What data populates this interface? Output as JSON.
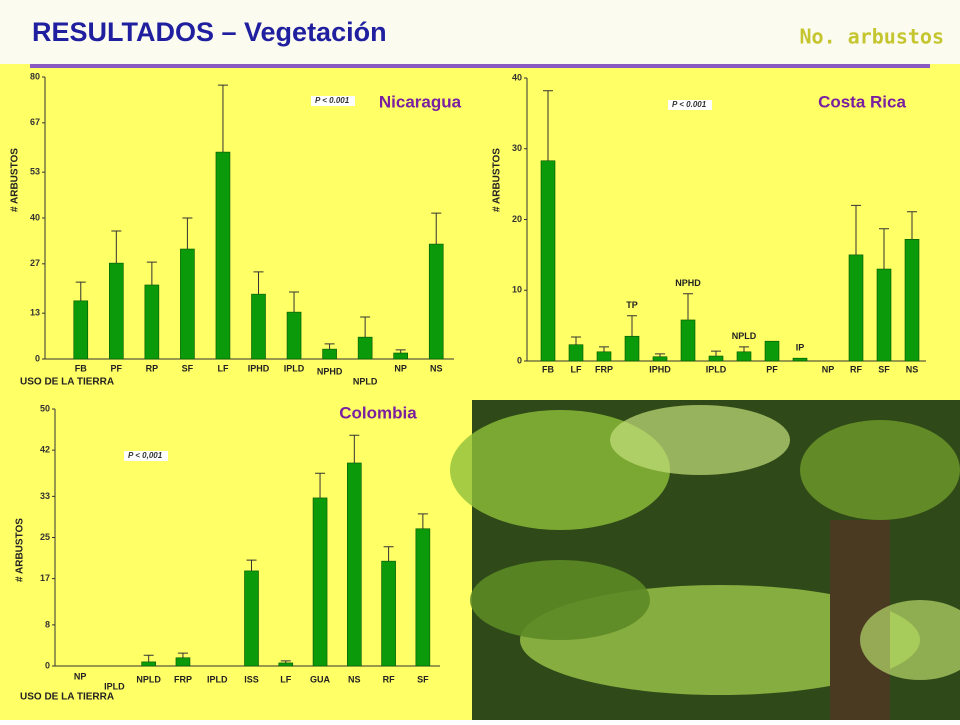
{
  "header": {
    "title": "RESULTADOS – Vegetación",
    "subtitle": "No. arbustos"
  },
  "chart_data": [
    {
      "type": "bar",
      "title": "Nicaragua",
      "annotation": "P < 0.001",
      "y_label": "# ARBUSTOS",
      "x_label": "USO DE LA TIERRA",
      "color": "#0a9a0a",
      "categories": [
        "FB",
        "PF",
        "RP",
        "SF",
        "LF",
        "IPHD",
        "IPLD",
        "NPHD",
        "NPLD",
        "NP",
        "NS"
      ],
      "values": [
        16.5,
        27.2,
        21,
        31.2,
        58.7,
        18.4,
        13.3,
        2.8,
        6.2,
        1.7,
        32.6
      ],
      "errors": [
        5.3,
        9.1,
        6.5,
        8.8,
        19,
        6.3,
        5.7,
        1.5,
        5.7,
        0.9,
        8.8
      ],
      "ylim": [
        0,
        80
      ],
      "yticks": [
        0,
        13,
        27,
        40,
        53,
        67,
        80
      ]
    },
    {
      "type": "bar",
      "title": "Costa Rica",
      "annotation": "P < 0.001",
      "y_label": "# ARBUSTOS",
      "color": "#0a9a0a",
      "categories": [
        "FB",
        "LF",
        "FRP",
        "TP",
        "IPHD",
        "NPHD",
        "IPLD",
        "NPLD",
        "PF",
        "IP",
        "NP",
        "RF",
        "SF",
        "NS"
      ],
      "values": [
        28.3,
        2.3,
        1.3,
        3.5,
        0.6,
        5.8,
        0.7,
        1.3,
        2.8,
        0.4,
        0,
        15,
        13,
        17.2
      ],
      "errors": [
        9.9,
        1.1,
        0.7,
        2.9,
        0.4,
        3.7,
        0.7,
        0.7,
        null,
        null,
        null,
        7,
        5.7,
        3.9
      ],
      "ylim": [
        0,
        40
      ],
      "yticks": [
        0,
        10,
        20,
        30,
        40
      ]
    },
    {
      "type": "bar",
      "title": "Colombia",
      "annotation": "P < 0,001",
      "y_label": "# ARBUSTOS",
      "x_label": "USO DE LA TIERRA",
      "color": "#0a9a0a",
      "categories": [
        "NP",
        "IPLD",
        "NPLD",
        "FRP",
        "IPLD",
        "ISS",
        "LF",
        "GUA",
        "NS",
        "RF",
        "SF"
      ],
      "values": [
        0,
        0,
        0.8,
        1.6,
        0,
        18.5,
        0.6,
        32.7,
        39.5,
        20.4,
        26.7
      ],
      "errors": [
        null,
        null,
        1.3,
        0.9,
        null,
        2.1,
        0.4,
        4.8,
        5.4,
        2.8,
        2.9
      ],
      "ylim": [
        0,
        50
      ],
      "yticks": [
        0,
        8,
        17,
        25,
        33,
        42,
        50
      ]
    }
  ]
}
